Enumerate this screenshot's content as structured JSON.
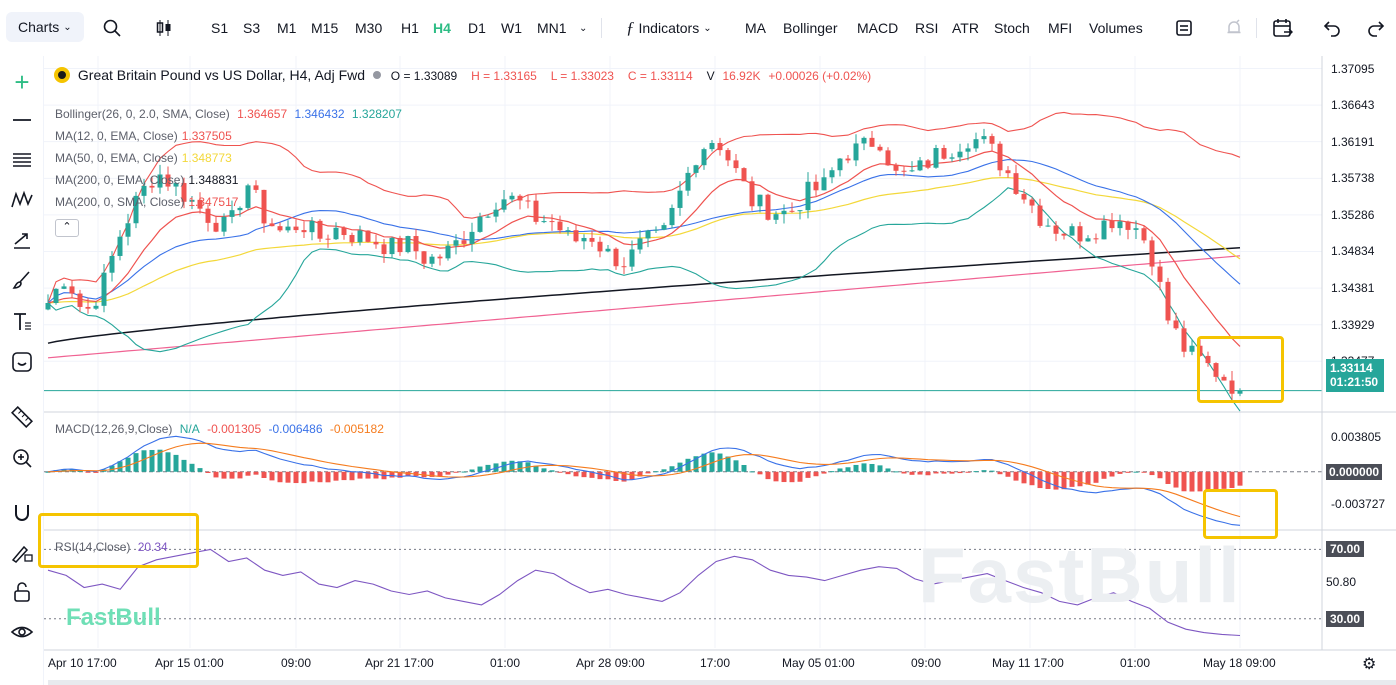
{
  "toolbar": {
    "charts_label": "Charts",
    "timeframes": [
      "S1",
      "S3",
      "M1",
      "M15",
      "M30",
      "H1",
      "H4",
      "D1",
      "W1",
      "MN1"
    ],
    "active_timeframe": "H4",
    "indicators_label": "Indicators",
    "quick_indicators": [
      "MA",
      "Bollinger",
      "MACD",
      "RSI",
      "ATR",
      "Stoch",
      "MFI",
      "Volumes"
    ]
  },
  "header": {
    "symbol": "Great Britain Pound vs US Dollar, H4, Adj Fwd",
    "open": "O = 1.33089",
    "high": "H = 1.33165",
    "low": "L = 1.33023",
    "close": "C = 1.33114",
    "volume": "V",
    "volume_value": "16.92K",
    "change": "+0.00026 (+0.02%)"
  },
  "legends": {
    "bollinger": {
      "label": "Bollinger(26, 0, 2.0, SMA, Close)",
      "v1": "1.364657",
      "v2": "1.346432",
      "v3": "1.328207"
    },
    "ma12": {
      "label": "MA(12, 0, EMA, Close)",
      "v": "1.337505"
    },
    "ma50": {
      "label": "MA(50, 0, EMA, Close)",
      "v": "1.348773"
    },
    "ma200e": {
      "label": "MA(200, 0, EMA, Close)",
      "v": "1.348831"
    },
    "ma200s": {
      "label": "MA(200, 0, SMA, Close)",
      "v": "1.347517"
    },
    "macd": {
      "label": "MACD(12,26,9,Close)",
      "na": "N/A",
      "v1": "-0.001305",
      "v2": "-0.006486",
      "v3": "-0.005182"
    },
    "rsi": {
      "label": "RSI(14,Close)",
      "v": "20.34"
    }
  },
  "price_axis": [
    "1.37095",
    "1.36643",
    "1.36191",
    "1.35738",
    "1.35286",
    "1.34834",
    "1.34381",
    "1.33929",
    "1.33477"
  ],
  "price_tag": {
    "price": "1.33114",
    "countdown": "01:21:50"
  },
  "macd_axis": [
    "0.003805",
    "0.000000",
    "-0.003727"
  ],
  "rsi_axis": [
    "70.00",
    "50.80",
    "30.00"
  ],
  "time_axis": [
    "Apr 10 17:00",
    "Apr 15 01:00",
    "09:00",
    "Apr 21 17:00",
    "01:00",
    "Apr 28 09:00",
    "17:00",
    "May 05 01:00",
    "09:00",
    "May 11 17:00",
    "01:00",
    "May 18 09:00"
  ],
  "watermark": "FastBull",
  "logo": "FastBull",
  "colors": {
    "up": "#26a69a",
    "down": "#ef5350",
    "accent": "#2ebd85",
    "highlight": "#f5c400"
  },
  "chart_data": {
    "type": "candlestick",
    "title": "Great Britain Pound vs US Dollar, H4, Adj Fwd",
    "ylim": [
      1.3285,
      1.3725
    ],
    "close_path": [
      1.342,
      1.3455,
      1.3405,
      1.344,
      1.3505,
      1.355,
      1.3582,
      1.3565,
      1.3545,
      1.3525,
      1.351,
      1.357,
      1.3525,
      1.3505,
      1.352,
      1.35,
      1.3512,
      1.3503,
      1.3498,
      1.3488,
      1.3492,
      1.3472,
      1.348,
      1.3502,
      1.353,
      1.3552,
      1.3545,
      1.3525,
      1.352,
      1.3495,
      1.3505,
      1.348,
      1.347,
      1.3495,
      1.35,
      1.3555,
      1.361,
      1.3625,
      1.3585,
      1.3545,
      1.3535,
      1.353,
      1.3555,
      1.3565,
      1.3605,
      1.361,
      1.3625,
      1.3575,
      1.358,
      1.36,
      1.3612,
      1.3625,
      1.3615,
      1.3585,
      1.3555,
      1.3525,
      1.351,
      1.3505,
      1.3512,
      1.3525,
      1.352,
      1.349,
      1.34,
      1.336,
      1.3345,
      1.333,
      1.3311
    ],
    "series": [
      {
        "name": "Bollinger(26, 0, 2.0, SMA, Close)",
        "last": [
          1.364657,
          1.346432,
          1.328207
        ]
      },
      {
        "name": "MA(12, 0, EMA, Close)",
        "last": 1.337505
      },
      {
        "name": "MA(50, 0, EMA, Close)",
        "last": 1.348773
      },
      {
        "name": "MA(200, 0, EMA, Close)",
        "last": 1.348831
      },
      {
        "name": "MA(200, 0, SMA, Close)",
        "last": 1.347517
      }
    ],
    "macd": {
      "ylim": [
        -0.0065,
        0.006
      ],
      "last": [
        -0.001305,
        -0.006486,
        -0.005182
      ]
    },
    "rsi": {
      "ylim": [
        12,
        80
      ],
      "levels": [
        70,
        30
      ],
      "values": [
        58,
        55,
        48,
        50,
        47,
        60,
        64,
        66,
        68,
        70,
        63,
        65,
        58,
        55,
        57,
        50,
        48,
        52,
        50,
        46,
        44,
        46,
        42,
        40,
        38,
        44,
        52,
        58,
        56,
        50,
        45,
        47,
        44,
        42,
        40,
        45,
        55,
        63,
        66,
        64,
        58,
        55,
        54,
        52,
        55,
        58,
        60,
        59,
        53,
        50,
        52,
        54,
        56,
        52,
        48,
        45,
        40,
        38,
        42,
        45,
        40,
        36,
        28,
        24,
        22,
        21,
        20.34
      ]
    }
  }
}
